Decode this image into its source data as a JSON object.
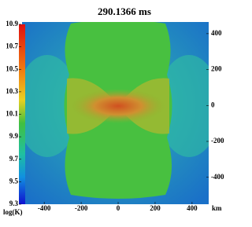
{
  "chart_data": {
    "type": "heatmap",
    "title": "290.1366 ms",
    "colorbar_label": "log(K)",
    "x_unit": "km",
    "xlim": [
      -520,
      490
    ],
    "xticks": [
      -400,
      -200,
      0,
      200,
      400
    ],
    "ylim": [
      -550,
      465
    ],
    "yticks": [
      -400,
      -200,
      0,
      200,
      400
    ],
    "clim": [
      9.3,
      10.9
    ],
    "cticks": [
      10.9,
      10.7,
      10.5,
      10.3,
      10.1,
      9.9,
      9.7,
      9.5,
      9.3
    ]
  }
}
